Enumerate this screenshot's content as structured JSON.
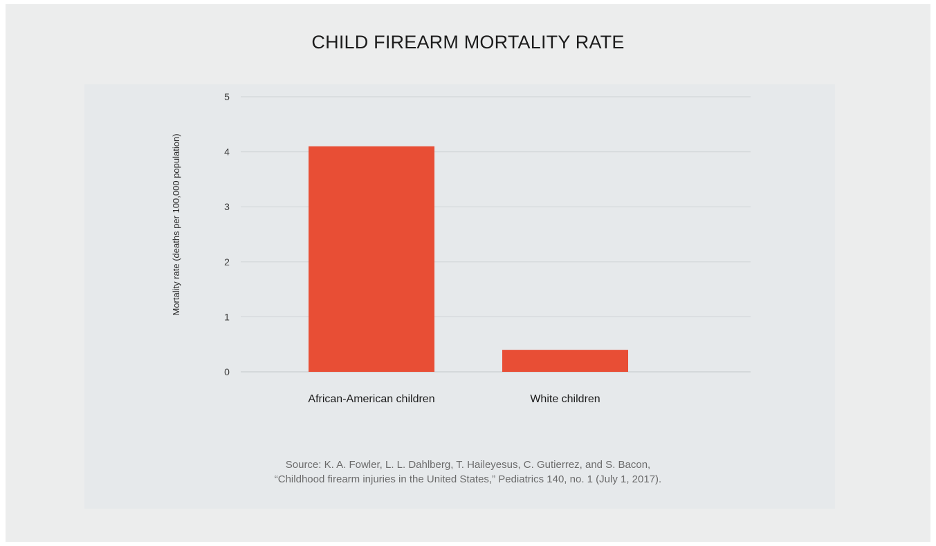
{
  "chart_data": {
    "type": "bar",
    "title": "CHILD FIREARM MORTALITY RATE",
    "ylabel": "Mortality rate  (deaths per 100,000 population)",
    "xlabel": "",
    "categories": [
      "African-American children",
      "White children"
    ],
    "values": [
      4.1,
      0.4
    ],
    "ylim": [
      0,
      5
    ],
    "yticks": [
      0,
      1,
      2,
      3,
      4,
      5
    ],
    "grid": true,
    "bar_color": "#e84e35",
    "source_line1": "Source:  K. A. Fowler, L. L. Dahlberg, T. Haileyesus, C. Gutierrez, and S. Bacon,",
    "source_line2": "“Childhood firearm injuries in the United States,” Pediatrics 140, no. 1 (July 1, 2017)."
  }
}
